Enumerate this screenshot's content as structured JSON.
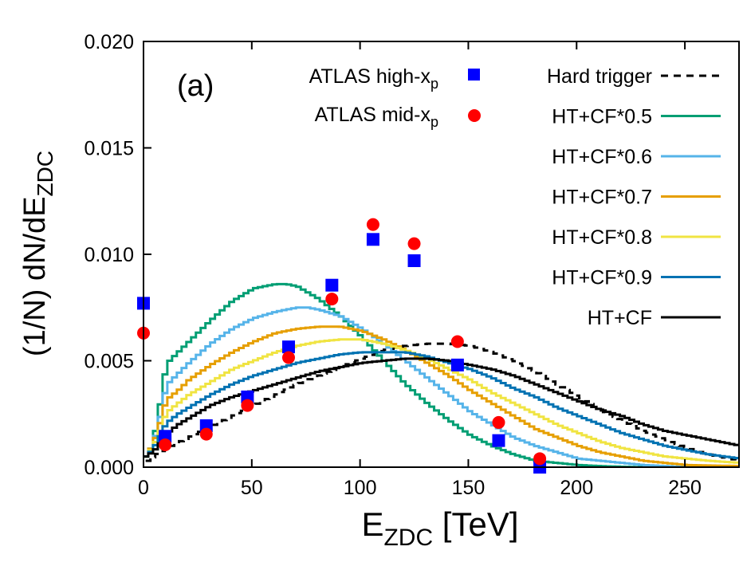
{
  "chart_data": {
    "type": "line",
    "panel_label": "(a)",
    "xlabel": {
      "main": "E",
      "sub": "ZDC",
      "unit": " [TeV]"
    },
    "ylabel": {
      "main": "(1/N) dN/dE",
      "sub": "ZDC"
    },
    "xlim": [
      0,
      275
    ],
    "ylim": [
      0,
      0.02
    ],
    "x_ticks": [
      {
        "value": 0,
        "label": "0"
      },
      {
        "value": 50,
        "label": "50"
      },
      {
        "value": 100,
        "label": "100"
      },
      {
        "value": 150,
        "label": "150"
      },
      {
        "value": 200,
        "label": "200"
      },
      {
        "value": 250,
        "label": "250"
      }
    ],
    "y_ticks": [
      {
        "value": 0,
        "label": "0.000"
      },
      {
        "value": 0.005,
        "label": "0.005"
      },
      {
        "value": 0.01,
        "label": "0.010"
      },
      {
        "value": 0.015,
        "label": "0.015"
      },
      {
        "value": 0.02,
        "label": "0.020"
      }
    ],
    "grid": false,
    "point_series": [
      {
        "name": "ATLAS high-x",
        "name_sub": "p",
        "marker": "square",
        "color": "#0000ff",
        "x": [
          0,
          10,
          29,
          48,
          67,
          87,
          106,
          125,
          145,
          164,
          183
        ],
        "y": [
          0.0077,
          0.00145,
          0.00195,
          0.0033,
          0.00565,
          0.00855,
          0.0107,
          0.0097,
          0.0048,
          0.00125,
          0.0
        ]
      },
      {
        "name": "ATLAS mid-x",
        "name_sub": "p",
        "marker": "circle",
        "color": "#ff0000",
        "x": [
          0,
          10,
          29,
          48,
          67,
          87,
          106,
          125,
          145,
          164,
          183
        ],
        "y": [
          0.0063,
          0.00105,
          0.00155,
          0.0029,
          0.00515,
          0.0079,
          0.0114,
          0.0105,
          0.0059,
          0.0021,
          0.0004
        ]
      }
    ],
    "line_series": [
      {
        "name": "Hard trigger",
        "color": "#000000",
        "dashed": true,
        "x": [
          1,
          5,
          10,
          20,
          30,
          40,
          50,
          60,
          70,
          80,
          90,
          100,
          110,
          120,
          130,
          140,
          150,
          160,
          170,
          180,
          190,
          200,
          210,
          220,
          230,
          240,
          250,
          260,
          270,
          275
        ],
        "y": [
          0.0003,
          0.0006,
          0.0009,
          0.0014,
          0.0019,
          0.0024,
          0.0029,
          0.0034,
          0.0039,
          0.0043,
          0.0047,
          0.0051,
          0.0055,
          0.0057,
          0.0058,
          0.0058,
          0.0057,
          0.0054,
          0.005,
          0.0045,
          0.0039,
          0.0033,
          0.0027,
          0.0022,
          0.0017,
          0.0013,
          0.0009,
          0.0006,
          0.0004,
          0.0003
        ]
      },
      {
        "name": "HT+CF*0.5",
        "color": "#009e73",
        "dashed": false,
        "x": [
          0,
          3,
          6,
          8,
          10,
          15,
          20,
          30,
          40,
          50,
          60,
          65,
          70,
          80,
          90,
          100,
          110,
          120,
          130,
          140,
          150,
          160,
          170,
          180,
          190,
          200,
          210,
          220,
          230,
          240,
          250,
          260,
          275
        ],
        "y": [
          0.0005,
          0.001,
          0.0025,
          0.004,
          0.0049,
          0.0054,
          0.0059,
          0.0069,
          0.0078,
          0.0084,
          0.0086,
          0.0086,
          0.0085,
          0.0079,
          0.0071,
          0.0061,
          0.005,
          0.0039,
          0.003,
          0.0022,
          0.0015,
          0.001,
          0.0006,
          0.0003,
          0.0002,
          0.0001,
          5e-05,
          2e-05,
          0.0,
          0.0,
          0.0,
          0.0,
          0.0
        ]
      },
      {
        "name": "HT+CF*0.6",
        "color": "#56b4e9",
        "dashed": false,
        "x": [
          0,
          3,
          6,
          8,
          10,
          15,
          20,
          30,
          40,
          50,
          60,
          70,
          75,
          80,
          90,
          100,
          110,
          120,
          130,
          140,
          150,
          160,
          170,
          180,
          190,
          200,
          210,
          220,
          230,
          240,
          250,
          260,
          275
        ],
        "y": [
          0.0005,
          0.001,
          0.002,
          0.0032,
          0.0039,
          0.0044,
          0.0049,
          0.0058,
          0.0065,
          0.007,
          0.0073,
          0.0075,
          0.0075,
          0.0074,
          0.0071,
          0.0065,
          0.0058,
          0.005,
          0.0042,
          0.0034,
          0.0026,
          0.002,
          0.0014,
          0.001,
          0.0007,
          0.0004,
          0.0003,
          0.0002,
          0.0001,
          5e-05,
          0.0,
          0.0,
          0.0
        ]
      },
      {
        "name": "HT+CF*0.7",
        "color": "#e69f00",
        "dashed": false,
        "x": [
          0,
          3,
          6,
          8,
          10,
          15,
          20,
          30,
          40,
          50,
          60,
          70,
          80,
          90,
          100,
          110,
          120,
          130,
          140,
          150,
          160,
          170,
          180,
          190,
          200,
          210,
          220,
          230,
          240,
          250,
          260,
          275
        ],
        "y": [
          0.0005,
          0.001,
          0.0018,
          0.0027,
          0.0032,
          0.0036,
          0.0041,
          0.0048,
          0.0054,
          0.0059,
          0.0063,
          0.0065,
          0.0066,
          0.0066,
          0.0064,
          0.006,
          0.0055,
          0.0049,
          0.0043,
          0.0036,
          0.003,
          0.0024,
          0.0018,
          0.0014,
          0.001,
          0.0007,
          0.0005,
          0.0003,
          0.0002,
          0.0001,
          8e-05,
          5e-05
        ]
      },
      {
        "name": "HT+CF*0.8",
        "color": "#f0e442",
        "dashed": false,
        "x": [
          0,
          3,
          6,
          8,
          10,
          15,
          20,
          30,
          40,
          50,
          60,
          70,
          80,
          90,
          100,
          110,
          120,
          130,
          140,
          150,
          160,
          170,
          180,
          190,
          200,
          210,
          220,
          230,
          240,
          250,
          260,
          275
        ],
        "y": [
          0.0005,
          0.0009,
          0.0015,
          0.0022,
          0.0026,
          0.003,
          0.0034,
          0.004,
          0.0046,
          0.005,
          0.0054,
          0.0057,
          0.0059,
          0.006,
          0.006,
          0.0058,
          0.0055,
          0.0051,
          0.0046,
          0.0041,
          0.0035,
          0.003,
          0.0025,
          0.002,
          0.0016,
          0.0012,
          0.0009,
          0.0007,
          0.0005,
          0.0004,
          0.0003,
          0.0002
        ]
      },
      {
        "name": "HT+CF*0.9",
        "color": "#0072b2",
        "dashed": false,
        "x": [
          0,
          3,
          6,
          8,
          10,
          15,
          20,
          30,
          40,
          50,
          60,
          70,
          80,
          90,
          100,
          110,
          120,
          130,
          140,
          150,
          160,
          170,
          180,
          190,
          200,
          210,
          220,
          230,
          240,
          250,
          260,
          275
        ],
        "y": [
          0.0005,
          0.0008,
          0.0013,
          0.0018,
          0.0021,
          0.0025,
          0.0028,
          0.0034,
          0.0039,
          0.0043,
          0.0046,
          0.0049,
          0.0051,
          0.0053,
          0.0054,
          0.0054,
          0.0054,
          0.0052,
          0.0049,
          0.0046,
          0.0042,
          0.0037,
          0.0033,
          0.0028,
          0.0024,
          0.002,
          0.0016,
          0.0013,
          0.001,
          0.0008,
          0.0006,
          0.0004
        ]
      },
      {
        "name": "HT+CF",
        "color": "#000000",
        "dashed": false,
        "x": [
          0,
          3,
          6,
          8,
          10,
          15,
          20,
          30,
          40,
          50,
          60,
          70,
          80,
          90,
          100,
          110,
          120,
          130,
          140,
          150,
          160,
          170,
          180,
          190,
          200,
          210,
          220,
          230,
          240,
          250,
          260,
          275
        ],
        "y": [
          0.0005,
          0.0007,
          0.001,
          0.0014,
          0.0016,
          0.002,
          0.0023,
          0.0029,
          0.0033,
          0.0036,
          0.0039,
          0.0042,
          0.0045,
          0.0047,
          0.0049,
          0.005,
          0.0051,
          0.0051,
          0.005,
          0.0048,
          0.0046,
          0.0043,
          0.0039,
          0.0035,
          0.0031,
          0.0027,
          0.0024,
          0.002,
          0.0017,
          0.0015,
          0.0013,
          0.001
        ]
      }
    ]
  }
}
